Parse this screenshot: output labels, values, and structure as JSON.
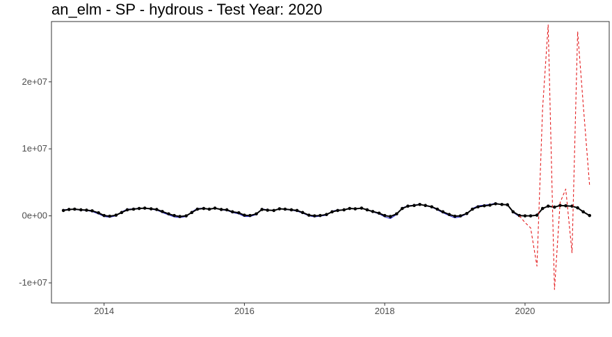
{
  "chart_data": {
    "type": "line",
    "title": "an_elm - SP - hydrous - Test Year: 2020",
    "xlabel": "",
    "ylabel": "",
    "xlim": [
      2013.25,
      2021.2
    ],
    "ylim": [
      -13000000,
      29000000
    ],
    "x_ticks": [
      2014,
      2016,
      2018,
      2020
    ],
    "x_tick_labels": [
      "2014",
      "2016",
      "2018",
      "2020"
    ],
    "y_ticks": [
      -10000000,
      0,
      10000000,
      20000000
    ],
    "y_tick_labels": [
      "-1e+07",
      "0e+00",
      "1e+07",
      "2e+07"
    ],
    "grid": false,
    "colors": {
      "observed": "#000000",
      "fitted": "#1f1fbf",
      "forecast": "#e31a1c"
    },
    "series": [
      {
        "style": "solid-with-points",
        "color": "#000000",
        "x": [
          2013.42,
          2013.5,
          2013.58,
          2013.67,
          2013.75,
          2013.83,
          2013.92,
          2014.0,
          2014.08,
          2014.17,
          2014.25,
          2014.33,
          2014.42,
          2014.5,
          2014.58,
          2014.67,
          2014.75,
          2014.83,
          2014.92,
          2015.0,
          2015.08,
          2015.17,
          2015.25,
          2015.33,
          2015.42,
          2015.5,
          2015.58,
          2015.67,
          2015.75,
          2015.83,
          2015.92,
          2016.0,
          2016.08,
          2016.17,
          2016.25,
          2016.33,
          2016.42,
          2016.5,
          2016.58,
          2016.67,
          2016.75,
          2016.83,
          2016.92,
          2017.0,
          2017.08,
          2017.17,
          2017.25,
          2017.33,
          2017.42,
          2017.5,
          2017.58,
          2017.67,
          2017.75,
          2017.83,
          2017.92,
          2018.0,
          2018.08,
          2018.17,
          2018.25,
          2018.33,
          2018.42,
          2018.5,
          2018.58,
          2018.67,
          2018.75,
          2018.83,
          2018.92,
          2019.0,
          2019.08,
          2019.17,
          2019.25,
          2019.33,
          2019.42,
          2019.5,
          2019.58,
          2019.67,
          2019.75,
          2019.83,
          2019.92,
          2020.0,
          2020.08,
          2020.17,
          2020.25,
          2020.33,
          2020.42,
          2020.5,
          2020.58,
          2020.67,
          2020.75,
          2020.83,
          2020.92
        ],
        "y": [
          800000,
          950000,
          1000000,
          900000,
          850000,
          750000,
          450000,
          50000,
          -50000,
          100000,
          500000,
          900000,
          1000000,
          1100000,
          1150000,
          1050000,
          950000,
          650000,
          300000,
          50000,
          -100000,
          0,
          500000,
          1000000,
          1100000,
          1000000,
          1150000,
          950000,
          900000,
          600000,
          450000,
          100000,
          50000,
          300000,
          950000,
          850000,
          800000,
          1050000,
          1000000,
          900000,
          800000,
          500000,
          100000,
          0,
          50000,
          200000,
          600000,
          800000,
          900000,
          1100000,
          1050000,
          1150000,
          900000,
          650000,
          400000,
          50000,
          -100000,
          300000,
          1100000,
          1450000,
          1550000,
          1700000,
          1550000,
          1350000,
          1000000,
          600000,
          200000,
          -50000,
          0,
          350000,
          1000000,
          1350000,
          1500000,
          1600000,
          1800000,
          1700000,
          1650000,
          600000,
          50000,
          0,
          0,
          100000,
          1100000,
          1450000,
          1300000,
          1550000,
          1500000,
          1450000,
          1200000,
          600000,
          50000
        ]
      },
      {
        "style": "solid",
        "color": "#1f1fbf",
        "x": [
          2013.42,
          2013.5,
          2013.58,
          2013.67,
          2013.75,
          2013.83,
          2013.92,
          2014.0,
          2014.08,
          2014.17,
          2014.25,
          2014.33,
          2014.42,
          2014.5,
          2014.58,
          2014.67,
          2014.75,
          2014.83,
          2014.92,
          2015.0,
          2015.08,
          2015.17,
          2015.25,
          2015.33,
          2015.42,
          2015.5,
          2015.58,
          2015.67,
          2015.75,
          2015.83,
          2015.92,
          2016.0,
          2016.08,
          2016.17,
          2016.25,
          2016.33,
          2016.42,
          2016.5,
          2016.58,
          2016.67,
          2016.75,
          2016.83,
          2016.92,
          2017.0,
          2017.08,
          2017.17,
          2017.25,
          2017.33,
          2017.42,
          2017.5,
          2017.58,
          2017.67,
          2017.75,
          2017.83,
          2017.92,
          2018.0,
          2018.08,
          2018.17,
          2018.25,
          2018.33,
          2018.42,
          2018.5,
          2018.58,
          2018.67,
          2018.75,
          2018.83,
          2018.92,
          2019.0,
          2019.08,
          2019.17,
          2019.25,
          2019.33,
          2019.42,
          2019.5,
          2019.58,
          2019.67,
          2019.75,
          2019.83,
          2019.92
        ],
        "y": [
          900000,
          1000000,
          950000,
          850000,
          800000,
          650000,
          300000,
          -100000,
          -200000,
          0,
          600000,
          1000000,
          1050000,
          1150000,
          1100000,
          1000000,
          850000,
          500000,
          150000,
          -150000,
          -250000,
          -100000,
          600000,
          1100000,
          1150000,
          950000,
          1200000,
          900000,
          800000,
          500000,
          300000,
          -100000,
          -100000,
          200000,
          1050000,
          900000,
          750000,
          1100000,
          950000,
          850000,
          700000,
          400000,
          0,
          -150000,
          -50000,
          100000,
          700000,
          900000,
          850000,
          1150000,
          1000000,
          1200000,
          850000,
          600000,
          300000,
          -150000,
          -400000,
          200000,
          1200000,
          1500000,
          1600000,
          1750000,
          1500000,
          1300000,
          900000,
          450000,
          50000,
          -300000,
          -150000,
          300000,
          1100000,
          1500000,
          1600000,
          1700000,
          1900000,
          1650000,
          1700000,
          500000,
          -100000
        ]
      },
      {
        "style": "dashed",
        "color": "#e31a1c",
        "x": [
          2019.92,
          2020.0,
          2020.08,
          2020.17,
          2020.25,
          2020.33,
          2020.42,
          2020.5,
          2020.58,
          2020.67,
          2020.75,
          2020.83,
          2020.92
        ],
        "y": [
          0,
          -1000000,
          -1800000,
          -7500000,
          16000000,
          28500000,
          -11000000,
          2000000,
          4000000,
          -5500000,
          27500000,
          16500000,
          4500000
        ]
      }
    ]
  }
}
